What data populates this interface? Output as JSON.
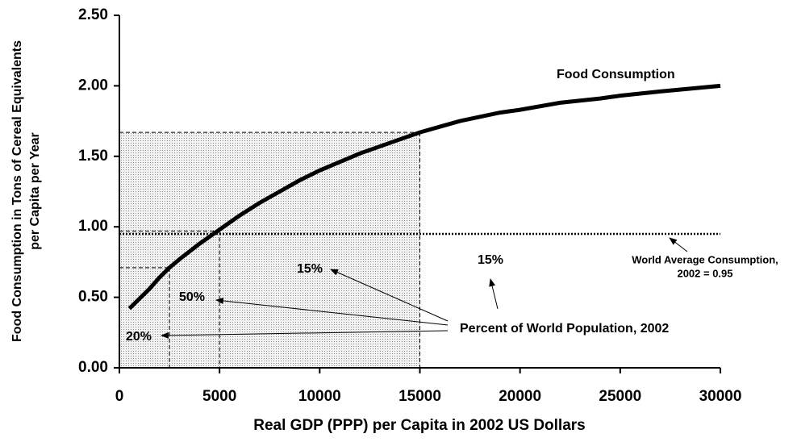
{
  "chart_data": {
    "type": "line",
    "xlabel": "Real GDP (PPP) per Capita in 2002 US Dollars",
    "ylabel": [
      "Food Consumption in Tons of Cereal Equivalents",
      "per Capita per Year"
    ],
    "x": [
      500,
      1000,
      1500,
      2000,
      2500,
      3000,
      4000,
      5000,
      6000,
      7000,
      8000,
      9000,
      10000,
      11000,
      12000,
      13000,
      14000,
      15000,
      16000,
      17000,
      18000,
      19000,
      20000,
      22000,
      24000,
      25000,
      27000,
      30000
    ],
    "series": [
      {
        "name": "Food Consumption",
        "color": "#000000",
        "values": [
          0.42,
          0.49,
          0.56,
          0.64,
          0.71,
          0.77,
          0.88,
          0.98,
          1.08,
          1.17,
          1.25,
          1.33,
          1.4,
          1.46,
          1.52,
          1.57,
          1.62,
          1.67,
          1.71,
          1.75,
          1.78,
          1.81,
          1.83,
          1.88,
          1.91,
          1.93,
          1.96,
          2.0
        ]
      }
    ],
    "xlim": [
      0,
      30000
    ],
    "xticks": [
      0,
      5000,
      10000,
      15000,
      20000,
      25000,
      30000
    ],
    "ylim": [
      0,
      2.5
    ],
    "yticks": [
      {
        "value": 0,
        "label": "0.00"
      },
      {
        "value": 0.5,
        "label": "0.50"
      },
      {
        "value": 1,
        "label": "1.00"
      },
      {
        "value": 1.5,
        "label": "1.50"
      },
      {
        "value": 2,
        "label": "2.00"
      },
      {
        "value": 2.5,
        "label": "2.50"
      }
    ],
    "reference_line": 0.95,
    "reference_boxes": [
      {
        "x": 2500,
        "y": 0.71
      },
      {
        "x": 5000,
        "y": 0.97
      },
      {
        "x": 15000,
        "y": 1.67
      }
    ],
    "annotations": {
      "world_average": [
        "World Average Consumption,",
        "2002 = 0.95"
      ],
      "population": "Percent of World Population, 2002",
      "shares": [
        "15%",
        "15%",
        "50%",
        "20%"
      ]
    }
  }
}
